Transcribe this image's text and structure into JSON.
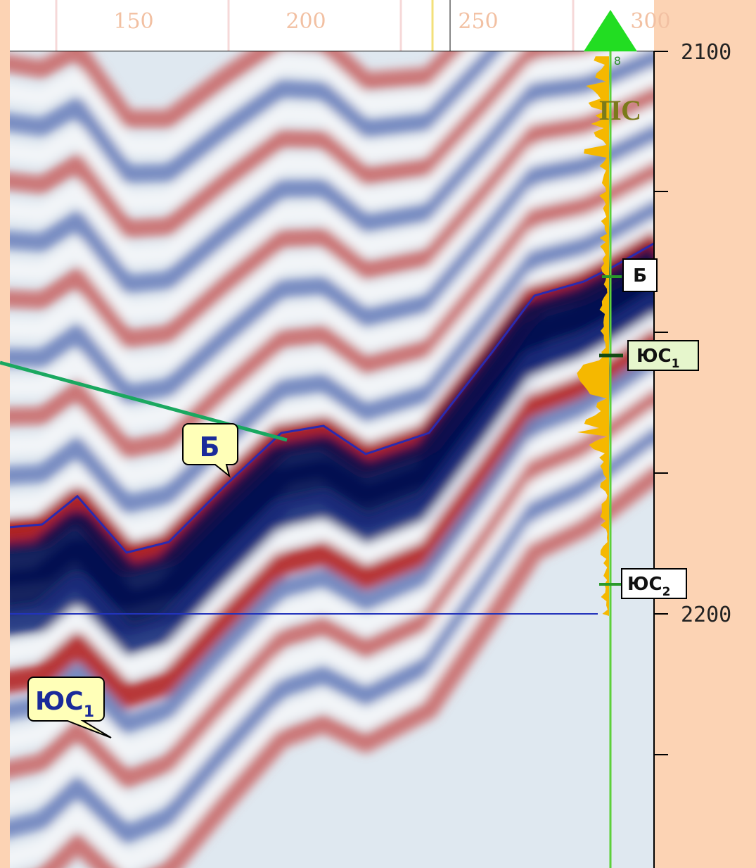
{
  "top_axis": {
    "ticks": [
      "150",
      "200",
      "250",
      "300"
    ]
  },
  "depth_axis": {
    "ticks": [
      "2100",
      "2200"
    ]
  },
  "well": {
    "number": "8",
    "log_label": "ПС",
    "markers": [
      {
        "label": "Б"
      },
      {
        "label": "ЮС",
        "subscript": "1"
      },
      {
        "label": "ЮС",
        "subscript": "2"
      }
    ]
  },
  "horizon_labels": [
    {
      "label": "Б"
    },
    {
      "label": "ЮС",
      "subscript": "1"
    }
  ]
}
